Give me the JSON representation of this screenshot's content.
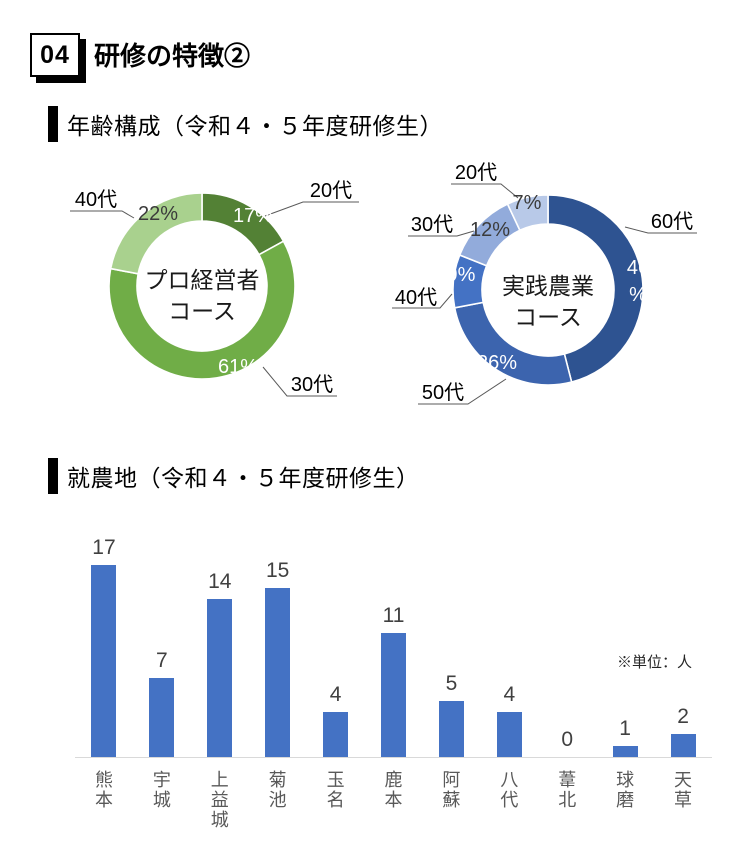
{
  "page": {
    "badge": "04",
    "title": "研修の特徴②"
  },
  "sections": [
    {
      "heading": "年齢構成（令和４・５年度研修生）"
    },
    {
      "heading": "就農地（令和４・５年度研修生）"
    }
  ],
  "chart_data": [
    {
      "type": "donut",
      "title": "プロ経営者コース",
      "center_label_lines": [
        "プロ経営者",
        "コース"
      ],
      "start_angle": 0,
      "slices": [
        {
          "label": "20代",
          "value": 17,
          "percent_label": "17%",
          "color": "#538135",
          "percent_color": "#ffffff"
        },
        {
          "label": "30代",
          "value": 61,
          "percent_label": "61%",
          "color": "#70ad47",
          "percent_color": "#ffffff"
        },
        {
          "label": "40代",
          "value": 22,
          "percent_label": "22%",
          "color": "#a9d18e",
          "percent_color": "#3b3b3b"
        }
      ]
    },
    {
      "type": "donut",
      "title": "実践農業コース",
      "center_label_lines": [
        "実践農業",
        "コース"
      ],
      "start_angle": 0,
      "slices": [
        {
          "label": "60代",
          "value": 46,
          "percent_label": "46\n%",
          "color": "#2e5391",
          "percent_color": "#ffffff"
        },
        {
          "label": "50代",
          "value": 26,
          "percent_label": "26%",
          "color": "#3c64ae",
          "percent_color": "#ffffff"
        },
        {
          "label": "40代",
          "value": 9,
          "percent_label": "9%",
          "color": "#4472c4",
          "percent_color": "#ffffff"
        },
        {
          "label": "30代",
          "value": 12,
          "percent_label": "12%",
          "color": "#92abdb",
          "percent_color": "#3b3b3b"
        },
        {
          "label": "20代",
          "value": 7,
          "percent_label": "7%",
          "color": "#b8c9e8",
          "percent_color": "#3b3b3b"
        }
      ]
    },
    {
      "type": "bar",
      "categories": [
        "熊本",
        "宇城",
        "上益城",
        "菊池",
        "玉名",
        "鹿本",
        "阿蘇",
        "八代",
        "葦北",
        "球磨",
        "天草"
      ],
      "values": [
        17,
        7,
        14,
        15,
        4,
        11,
        5,
        4,
        0,
        1,
        2
      ],
      "unit_note": "※単位：人",
      "bar_color": "#4472c4",
      "axis_color": "#d9d9d9",
      "ylim": [
        0,
        18
      ],
      "grid": false,
      "legend": "none"
    }
  ]
}
